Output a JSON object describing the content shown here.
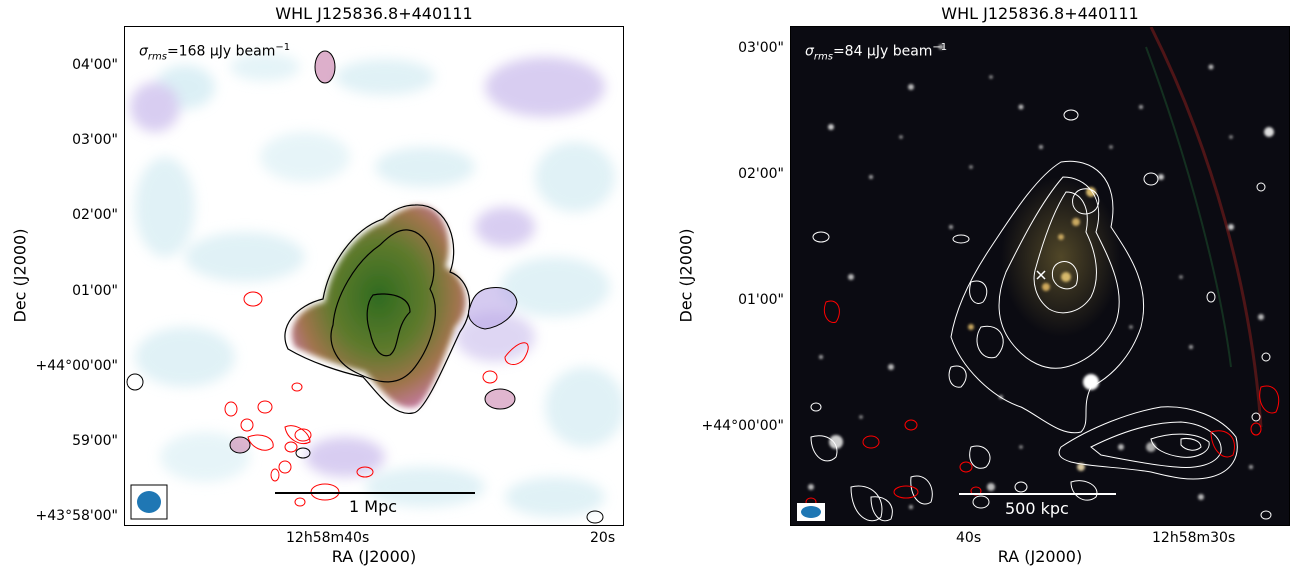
{
  "left_panel": {
    "title": "WHL J125836.8+440111",
    "rms_symbol": "σ",
    "rms_sub": "rms",
    "rms_value": "=168 μJy beam",
    "rms_exp": "−1",
    "scalebar_label": "1 Mpc",
    "ytick_labels": [
      "04'00\"",
      "03'00\"",
      "02'00\"",
      "01'00\"",
      "+44°00'00\"",
      "59'00\"",
      "+43°58'00\""
    ],
    "xtick_labels": [
      "12h58m40s",
      "20s"
    ],
    "xlabel": "RA (J2000)",
    "ylabel": "Dec (J2000)"
  },
  "right_panel": {
    "title": "WHL J125836.8+440111",
    "rms_symbol": "σ",
    "rms_sub": "rms",
    "rms_value": "=84 μJy beam",
    "rms_exp": "−1",
    "scalebar_label": "500 kpc",
    "ytick_labels": [
      "03'00\"",
      "02'00\"",
      "01'00\"",
      "+44°00'00\""
    ],
    "xtick_labels": [
      "40s",
      "12h58m30s"
    ],
    "xlabel": "RA (J2000)",
    "ylabel": "Dec (J2000)"
  },
  "colors": {
    "contour_positive_left": "#000000",
    "contour_negative": "#ff0000",
    "contour_right": "#ffffff",
    "beam": "#1f77b4",
    "background_right": "#0b0b12",
    "emission_green": "#3a7a2a",
    "emission_pink": "#c77aa8"
  }
}
